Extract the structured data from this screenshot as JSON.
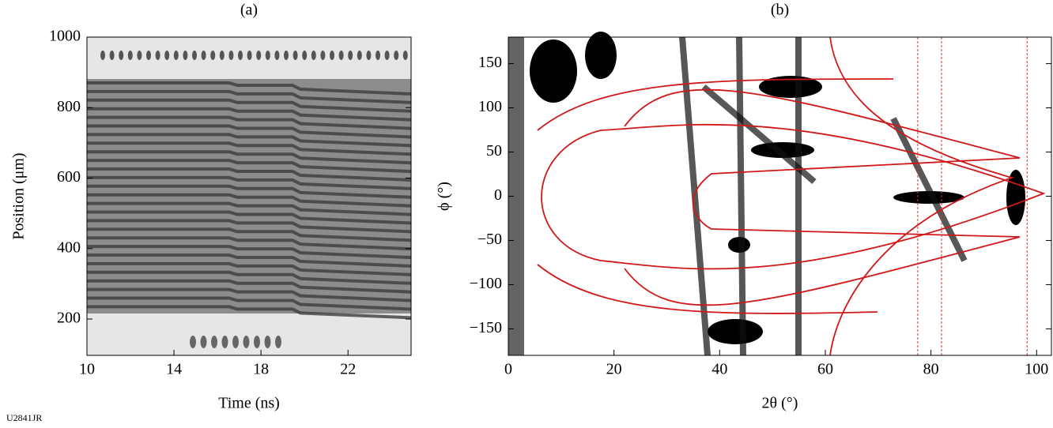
{
  "figure_id": "U2841JR",
  "chart_data": [
    {
      "type": "image",
      "title": "(a)",
      "xlabel": "Time (ns)",
      "ylabel": "Position (μm)",
      "xlim": [
        10,
        24.9
      ],
      "ylim": [
        97,
        1000
      ],
      "xticks": [
        10,
        14,
        18,
        22
      ],
      "yticks": [
        200,
        400,
        600,
        800,
        1000
      ]
    },
    {
      "type": "image",
      "title": "(b)",
      "xlabel": "2θ (°)",
      "ylabel": "ϕ (°)",
      "xlim": [
        0,
        102.8
      ],
      "ylim": [
        -180,
        180
      ],
      "xticks": [
        0,
        20,
        40,
        60,
        80,
        100
      ],
      "yticks": [
        {
          "value": -150,
          "label": "−150"
        },
        {
          "value": -100,
          "label": "−100"
        },
        {
          "value": -50,
          "label": "−50"
        },
        0,
        50,
        100,
        150
      ],
      "vlines": [
        77.5,
        82,
        98.2
      ],
      "vline_color": "#e03030"
    }
  ]
}
